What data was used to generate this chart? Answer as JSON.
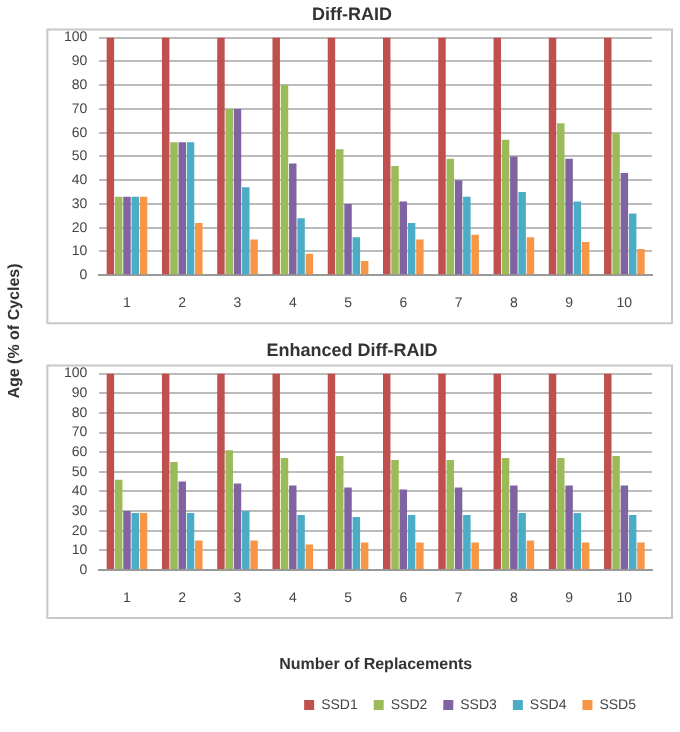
{
  "chart_data": [
    {
      "type": "bar",
      "title": "Diff-RAID",
      "ylabel": "Age (% of Cycles)",
      "categories": [
        "1",
        "2",
        "3",
        "4",
        "5",
        "6",
        "7",
        "8",
        "9",
        "10"
      ],
      "series": [
        {
          "color": "#c0504d",
          "values": [
            100,
            100,
            100,
            100,
            100,
            100,
            100,
            100,
            100,
            100
          ]
        },
        {
          "color": "#9bbb59",
          "values": [
            33,
            56,
            70,
            80,
            53,
            46,
            49,
            57,
            64,
            60
          ]
        },
        {
          "color": "#8064a2",
          "values": [
            33,
            56,
            70,
            47,
            30,
            31,
            40,
            50,
            49,
            43
          ]
        },
        {
          "color": "#4bacc6",
          "values": [
            33,
            56,
            37,
            24,
            16,
            22,
            33,
            35,
            31,
            26
          ]
        },
        {
          "color": "#f79646",
          "values": [
            33,
            22,
            15,
            9,
            6,
            15,
            17,
            16,
            14,
            11
          ]
        }
      ],
      "ylim": [
        0,
        100
      ],
      "yticks": [
        0,
        10,
        20,
        30,
        40,
        50,
        60,
        70,
        80,
        90,
        100
      ],
      "grid": "y",
      "legend": false
    },
    {
      "type": "bar",
      "title": "Enhanced Diff-RAID",
      "xlabel": "Number of Replacements",
      "categories": [
        "1",
        "2",
        "3",
        "4",
        "5",
        "6",
        "7",
        "8",
        "9",
        "10"
      ],
      "series": [
        {
          "name": "SSD1",
          "color": "#c0504d",
          "values": [
            100,
            100,
            100,
            100,
            100,
            100,
            100,
            100,
            100,
            100
          ]
        },
        {
          "name": "SSD2",
          "color": "#9bbb59",
          "values": [
            46,
            55,
            61,
            57,
            58,
            56,
            56,
            57,
            57,
            58
          ]
        },
        {
          "name": "SSD3",
          "color": "#8064a2",
          "values": [
            30,
            45,
            44,
            43,
            42,
            41,
            42,
            43,
            43,
            43
          ]
        },
        {
          "name": "SSD4",
          "color": "#4bacc6",
          "values": [
            29,
            29,
            30,
            28,
            27,
            28,
            28,
            29,
            29,
            28
          ]
        },
        {
          "name": "SSD5",
          "color": "#f79646",
          "values": [
            29,
            15,
            15,
            13,
            14,
            14,
            14,
            15,
            14,
            14
          ]
        }
      ],
      "ylim": [
        0,
        100
      ],
      "yticks": [
        0,
        10,
        20,
        30,
        40,
        50,
        60,
        70,
        80,
        90,
        100
      ],
      "grid": "y",
      "legend": "bottom right"
    }
  ]
}
